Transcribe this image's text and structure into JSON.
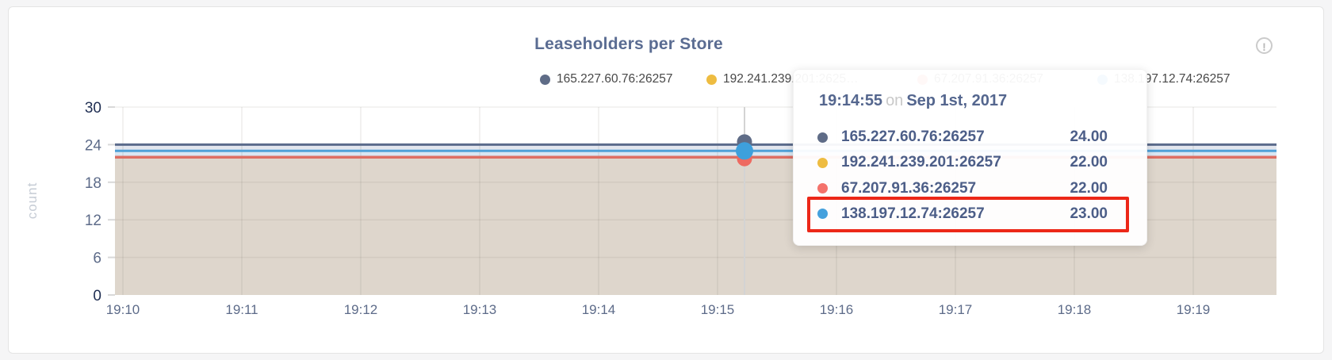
{
  "page": {
    "title": "Leaseholders per Store"
  },
  "info_icon": {
    "glyph": "!"
  },
  "legend": {
    "items": [
      {
        "label": "165.227.60.76:26257",
        "color": "#5f6c87"
      },
      {
        "label": "192.241.239.201:2625…",
        "color": "#eebc41"
      },
      {
        "label": "67.207.91.36:26257",
        "color": "#f4726b"
      },
      {
        "label": "138.197.12.74:26257",
        "color": "#45a1dd"
      }
    ]
  },
  "tooltip": {
    "time": "19:14:55",
    "connector": "on",
    "date": "Sep 1st, 2017",
    "rows": [
      {
        "name": "165.227.60.76:26257",
        "value": "24.00",
        "color": "#5f6c87",
        "highlighted": false
      },
      {
        "name": "192.241.239.201:26257",
        "value": "22.00",
        "color": "#eebc41",
        "highlighted": false
      },
      {
        "name": "67.207.91.36:26257",
        "value": "22.00",
        "color": "#f4726b",
        "highlighted": false
      },
      {
        "name": "138.197.12.74:26257",
        "value": "23.00",
        "color": "#45a1dd",
        "highlighted": true
      }
    ],
    "highlight_color": "#ec2718"
  },
  "chart_data": {
    "type": "area",
    "title": "Leaseholders per Store",
    "ylabel": "count",
    "xlabel": "",
    "ylim": [
      0,
      30
    ],
    "yticks": [
      0,
      6,
      12,
      18,
      24,
      30
    ],
    "xticks": [
      "19:10",
      "19:11",
      "19:12",
      "19:13",
      "19:14",
      "19:15",
      "19:16",
      "19:17",
      "19:18",
      "19:19"
    ],
    "grid": true,
    "legend_position": "top",
    "series": [
      {
        "name": "165.227.60.76:26257",
        "color": "#5b6b8b",
        "constant_value": 24,
        "line_width": 3
      },
      {
        "name": "192.241.239.201:26257",
        "color": "#eebc41",
        "constant_value": 22,
        "line_width": 3
      },
      {
        "name": "67.207.91.36:26257",
        "color": "#dd6e63",
        "constant_value": 22,
        "line_width": 3.5
      },
      {
        "name": "138.197.12.74:26257",
        "color": "#4fa0d8",
        "constant_value": 23,
        "line_width": 3
      }
    ],
    "hover": {
      "time": "19:14:55",
      "date": "Sep 1st, 2017",
      "points": [
        {
          "name": "165.227.60.76:26257",
          "value": 24,
          "color": "#5f6c87"
        },
        {
          "name": "67.207.91.36:26257",
          "value": 22,
          "color": "#ee6a61"
        },
        {
          "name": "138.197.12.74:26257",
          "value": 23,
          "color": "#3ea0dc"
        }
      ]
    },
    "render_bands": [
      {
        "from": 23,
        "to": 24,
        "color": "#e2e6ee"
      },
      {
        "from": 22,
        "to": 23,
        "color": "#d9e6f2"
      },
      {
        "from": 0,
        "to": 22,
        "color": "#ded6cc"
      }
    ]
  }
}
